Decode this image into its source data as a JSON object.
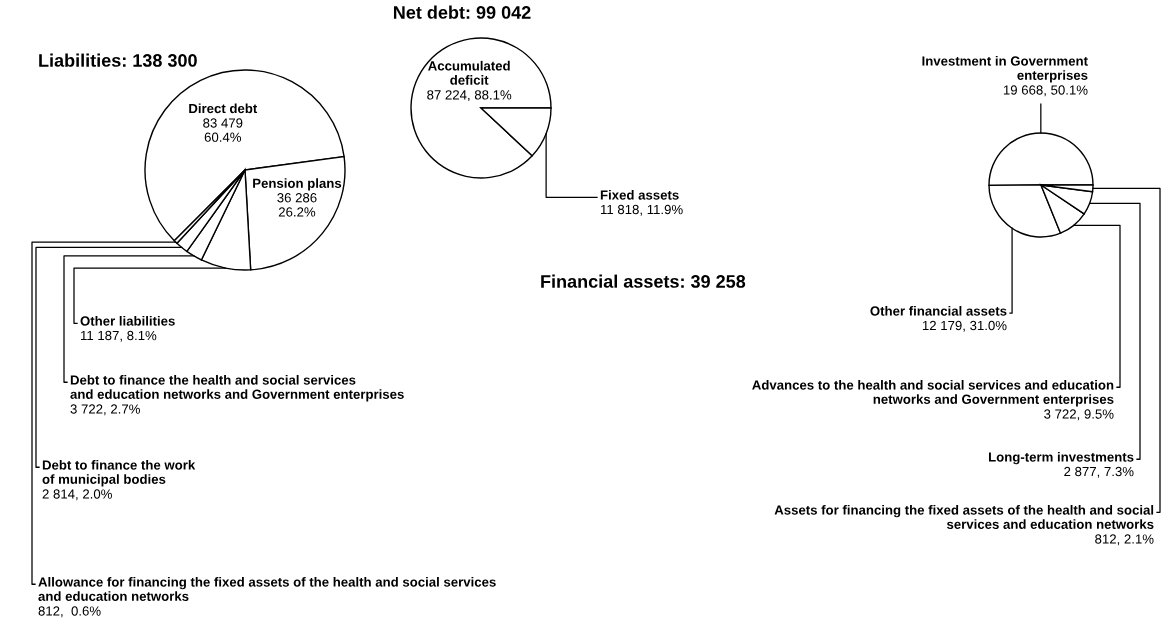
{
  "chart_data": [
    {
      "type": "pie",
      "title": "Liabilities: 138 300",
      "categories": [
        "Direct debt",
        "Pension plans",
        "Other liabilities",
        "Debt to finance the health and social services\nand education networks and Government enterprises",
        "Debt to finance the work\nof municipal bodies",
        "Allowance for financing the fixed assets of the health and social services\nand education networks"
      ],
      "values": [
        83479,
        36286,
        11187,
        3722,
        2814,
        812
      ],
      "value_labels": [
        "83 479\n60.4%",
        "36 286\n26.2%",
        "11 187, 8.1%",
        "3 722, 2.7%",
        "2 814, 2.0%",
        "812,  0.6%"
      ],
      "colors": [
        "#ffffff",
        "#ffffff",
        "#ffffff",
        "#ffffff",
        "#ffffff",
        "#ffffff"
      ]
    },
    {
      "type": "pie",
      "title": "Net debt: 99 042",
      "categories": [
        "Accumulated\ndeficit",
        "Fixed assets"
      ],
      "values": [
        87224,
        11818
      ],
      "value_labels": [
        "87 224, 88.1%",
        "11 818, 11.9%"
      ],
      "colors": [
        "#ffffff",
        "#ffffff"
      ]
    },
    {
      "type": "pie",
      "title": "Financial assets: 39 258",
      "categories": [
        "Investment in Government\nenterprises",
        "Other financial assets",
        "Advances to the health and social services and education\nnetworks and Government enterprises",
        "Long-term investments",
        "Assets for financing the fixed assets of the health and social\nservices and education networks"
      ],
      "values": [
        19668,
        12179,
        3722,
        2877,
        812
      ],
      "value_labels": [
        "19 668, 50.1%",
        "12 179, 31.0%",
        "3 722, 9.5%",
        "2 877, 7.3%",
        "812, 2.1%"
      ],
      "colors": [
        "#ffffff",
        "#ffffff",
        "#ffffff",
        "#ffffff",
        "#ffffff"
      ]
    }
  ]
}
